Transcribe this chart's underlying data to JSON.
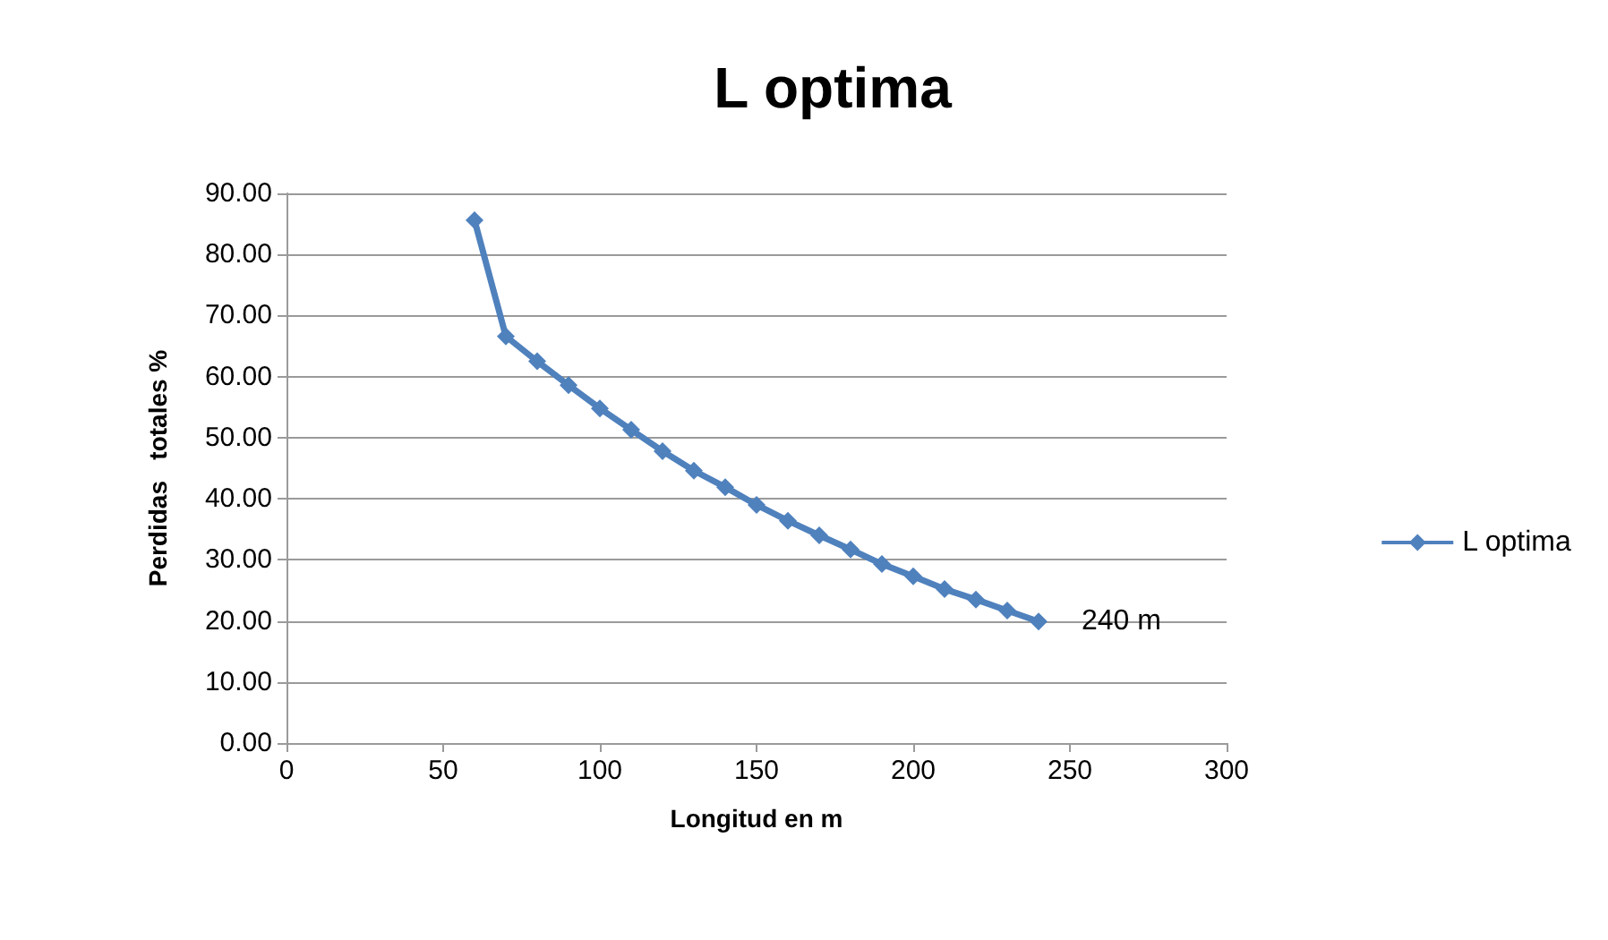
{
  "chart_data": {
    "type": "line",
    "title": "L optima",
    "xlabel": "Longitud en m",
    "ylabel": "Perdidas   totales %",
    "x": [
      60,
      70,
      80,
      90,
      100,
      110,
      120,
      130,
      140,
      150,
      160,
      170,
      180,
      190,
      200,
      210,
      220,
      230,
      240
    ],
    "series": [
      {
        "name": "L optima",
        "color": "#4f81bd",
        "values": [
          85.6,
          66.6,
          62.5,
          58.6,
          54.8,
          51.3,
          47.8,
          44.6,
          41.9,
          39.0,
          36.4,
          34.0,
          31.7,
          29.3,
          27.3,
          25.2,
          23.5,
          21.7,
          19.9
        ]
      }
    ],
    "xlim": [
      0,
      300
    ],
    "xticks": [
      0,
      50,
      100,
      150,
      200,
      250,
      300
    ],
    "ylim": [
      0,
      90
    ],
    "yticks": [
      {
        "value": 0,
        "label": "0.00"
      },
      {
        "value": 10,
        "label": "10.00"
      },
      {
        "value": 20,
        "label": "20.00"
      },
      {
        "value": 30,
        "label": "30.00"
      },
      {
        "value": 40,
        "label": "40.00"
      },
      {
        "value": 50,
        "label": "50.00"
      },
      {
        "value": 60,
        "label": "60.00"
      },
      {
        "value": 70,
        "label": "70.00"
      },
      {
        "value": 80,
        "label": "80.00"
      },
      {
        "value": 90,
        "label": "90.00"
      }
    ],
    "annotations": [
      {
        "text": "240 m",
        "x": 240,
        "y": 19.9
      }
    ],
    "grid": "y",
    "legend": "right",
    "marker": "diamond",
    "line_style": "solid"
  }
}
